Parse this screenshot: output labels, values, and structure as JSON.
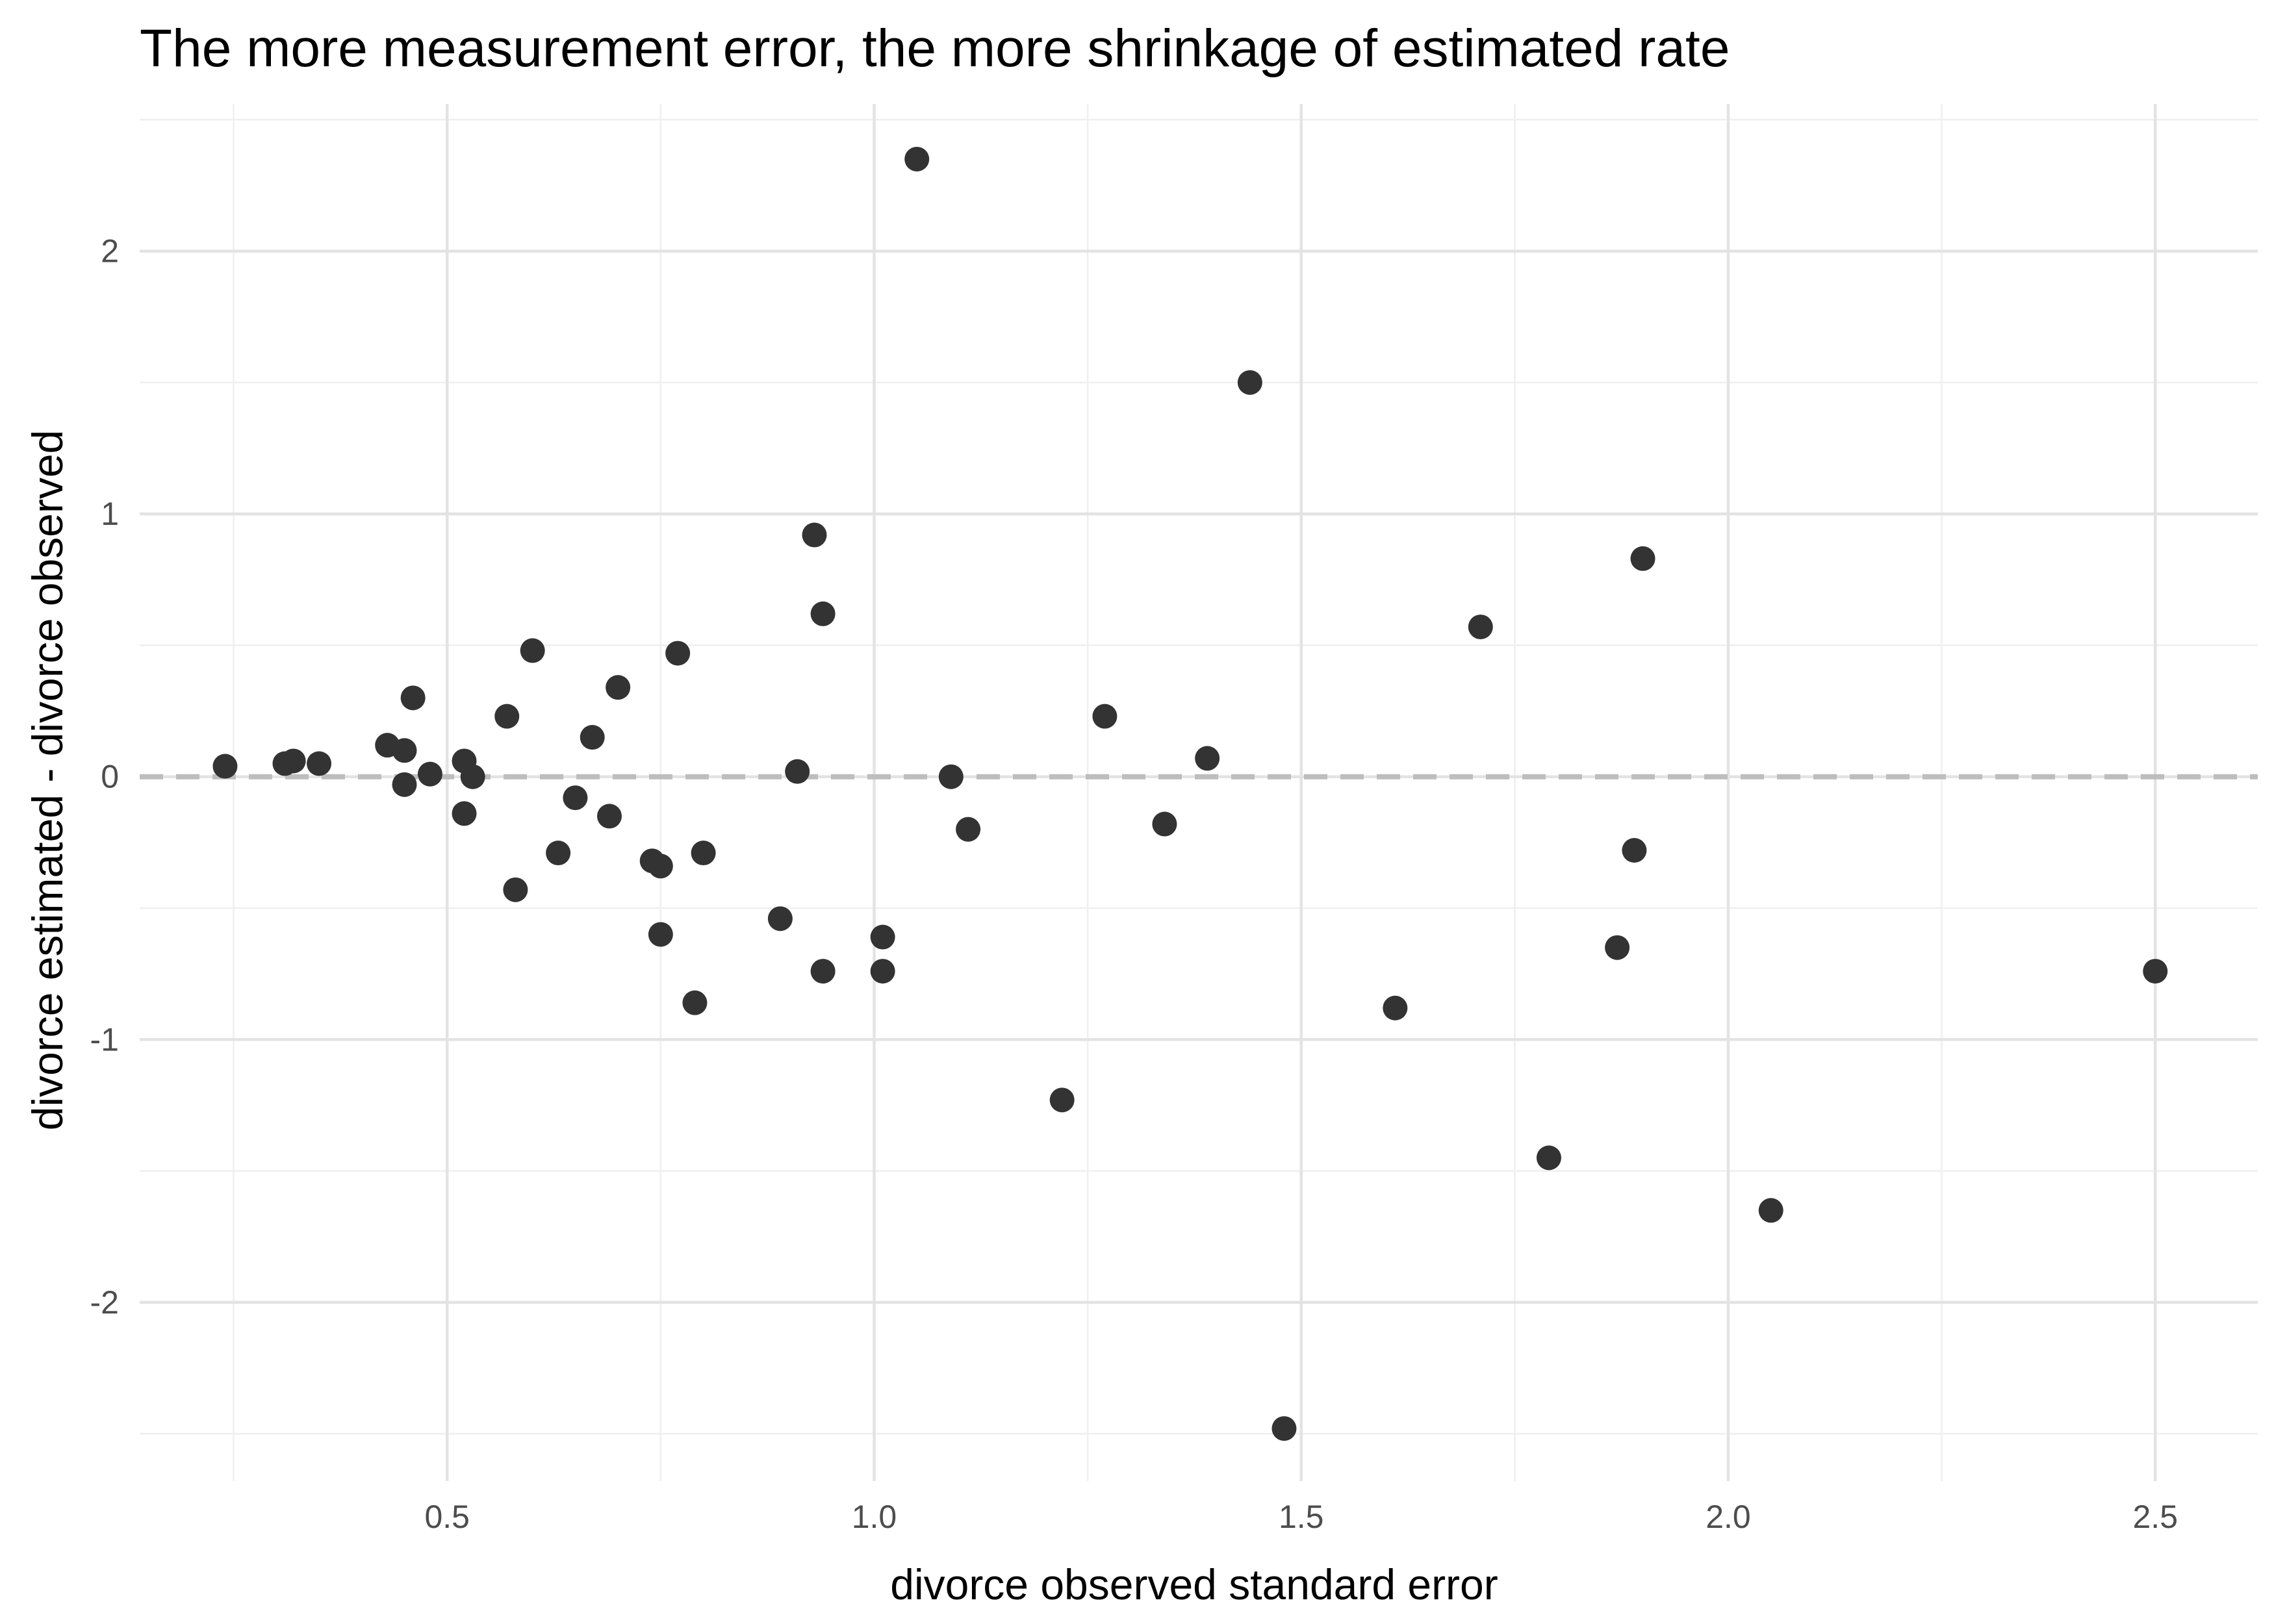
{
  "chart_data": {
    "type": "scatter",
    "title": "The more measurement error, the more shrinkage of estimated rate",
    "xlabel": "divorce observed standard error",
    "ylabel": "divorce estimated - divorce observed",
    "xlim": [
      0.14,
      2.62
    ],
    "ylim": [
      -2.68,
      2.56
    ],
    "x_ticks": [
      0.5,
      1.0,
      1.5,
      2.0,
      2.5
    ],
    "x_tick_labels": [
      "0.5",
      "1.0",
      "1.5",
      "2.0",
      "2.5"
    ],
    "y_ticks": [
      -2,
      -1,
      0,
      1,
      2
    ],
    "y_tick_labels": [
      "-2",
      "-1",
      "0",
      "1",
      "2"
    ],
    "grid": true,
    "reference_line": {
      "y": 0,
      "style": "dashed",
      "color": "#bdbdbd"
    },
    "point_color": "#333333",
    "points": [
      {
        "x": 0.24,
        "y": 0.04
      },
      {
        "x": 0.31,
        "y": 0.05
      },
      {
        "x": 0.32,
        "y": 0.06
      },
      {
        "x": 0.35,
        "y": 0.05
      },
      {
        "x": 0.43,
        "y": 0.12
      },
      {
        "x": 0.45,
        "y": 0.1
      },
      {
        "x": 0.45,
        "y": -0.03
      },
      {
        "x": 0.46,
        "y": 0.3
      },
      {
        "x": 0.48,
        "y": 0.01
      },
      {
        "x": 0.52,
        "y": 0.06
      },
      {
        "x": 0.52,
        "y": -0.14
      },
      {
        "x": 0.53,
        "y": 0.0
      },
      {
        "x": 0.57,
        "y": 0.23
      },
      {
        "x": 0.58,
        "y": -0.43
      },
      {
        "x": 0.6,
        "y": 0.48
      },
      {
        "x": 0.63,
        "y": -0.29
      },
      {
        "x": 0.65,
        "y": -0.08
      },
      {
        "x": 0.67,
        "y": 0.15
      },
      {
        "x": 0.69,
        "y": -0.15
      },
      {
        "x": 0.7,
        "y": 0.34
      },
      {
        "x": 0.74,
        "y": -0.32
      },
      {
        "x": 0.75,
        "y": -0.34
      },
      {
        "x": 0.75,
        "y": -0.6
      },
      {
        "x": 0.77,
        "y": 0.47
      },
      {
        "x": 0.79,
        "y": -0.86
      },
      {
        "x": 0.8,
        "y": -0.29
      },
      {
        "x": 0.89,
        "y": -0.54
      },
      {
        "x": 0.91,
        "y": 0.02
      },
      {
        "x": 0.93,
        "y": 0.92
      },
      {
        "x": 0.94,
        "y": 0.62
      },
      {
        "x": 0.94,
        "y": -0.74
      },
      {
        "x": 1.01,
        "y": -0.61
      },
      {
        "x": 1.01,
        "y": -0.74
      },
      {
        "x": 1.05,
        "y": 2.35
      },
      {
        "x": 1.09,
        "y": 0.0
      },
      {
        "x": 1.11,
        "y": -0.2
      },
      {
        "x": 1.22,
        "y": -1.23
      },
      {
        "x": 1.27,
        "y": 0.23
      },
      {
        "x": 1.34,
        "y": -0.18
      },
      {
        "x": 1.39,
        "y": 0.07
      },
      {
        "x": 1.44,
        "y": 1.5
      },
      {
        "x": 1.48,
        "y": -2.48
      },
      {
        "x": 1.61,
        "y": -0.88
      },
      {
        "x": 1.71,
        "y": 0.57
      },
      {
        "x": 1.79,
        "y": -1.45
      },
      {
        "x": 1.87,
        "y": -0.65
      },
      {
        "x": 1.89,
        "y": -0.28
      },
      {
        "x": 1.9,
        "y": 0.83
      },
      {
        "x": 2.05,
        "y": -1.65
      },
      {
        "x": 2.5,
        "y": -0.74
      }
    ]
  }
}
